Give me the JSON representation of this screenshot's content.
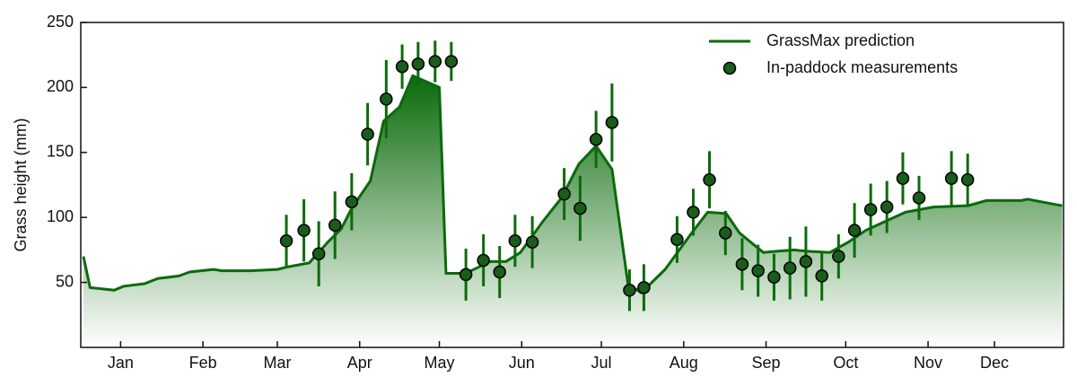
{
  "chart_data": {
    "type": "line",
    "ylabel": "Grass height (mm)",
    "xlim": [
      0,
      370
    ],
    "ylim": [
      0,
      250
    ],
    "xticks": [
      {
        "value": 15,
        "label": "Jan"
      },
      {
        "value": 46,
        "label": "Feb"
      },
      {
        "value": 74,
        "label": "Mar"
      },
      {
        "value": 105,
        "label": "Apr"
      },
      {
        "value": 135,
        "label": "May"
      },
      {
        "value": 166,
        "label": "Jun"
      },
      {
        "value": 196,
        "label": "Jul"
      },
      {
        "value": 227,
        "label": "Aug"
      },
      {
        "value": 258,
        "label": "Sep"
      },
      {
        "value": 288,
        "label": "Oct"
      },
      {
        "value": 319,
        "label": "Nov"
      },
      {
        "value": 344,
        "label": "Dec"
      }
    ],
    "yticks": [
      50,
      100,
      150,
      200,
      250
    ],
    "legend": "upper right",
    "series": [
      {
        "name": "GrassMax prediction",
        "type": "line",
        "color": "#0a6a0a",
        "x": [
          1,
          3.5,
          12.6,
          16,
          24,
          29,
          37,
          41,
          50,
          53,
          64,
          74,
          78,
          86,
          93,
          98,
          102,
          109,
          114,
          120,
          125,
          135,
          137.5,
          145,
          154,
          160,
          165.5,
          174,
          181,
          187.5,
          194,
          200,
          206,
          211,
          220,
          230,
          236,
          243,
          248,
          257,
          262,
          268.5,
          273.5,
          282,
          289,
          295.5,
          304,
          310.5,
          321,
          334,
          341,
          354,
          356.5,
          369.5
        ],
        "values": [
          70,
          46,
          44,
          47,
          49,
          53,
          55,
          58,
          60,
          59,
          59,
          60,
          62,
          65,
          81,
          91,
          107,
          128,
          174,
          185,
          209,
          200,
          57,
          57,
          66,
          66,
          73,
          97,
          115,
          141,
          155,
          137,
          49,
          42,
          60,
          88,
          104,
          103,
          88,
          73,
          74,
          75,
          74,
          73,
          81,
          90,
          98,
          104,
          108,
          109,
          113,
          113,
          114,
          109
        ]
      },
      {
        "name": "In-paddock measurements",
        "type": "scatter",
        "color": "#1a5c1a",
        "x": [
          77.4,
          84,
          89.6,
          95.7,
          102,
          108,
          115,
          121,
          127,
          133.4,
          139.5,
          145,
          151.6,
          157.7,
          163.5,
          170,
          182,
          188,
          194,
          200,
          206.6,
          212,
          224.5,
          230.6,
          236.7,
          242.7,
          249,
          255,
          261,
          267,
          273,
          279,
          285.3,
          291.3,
          297.4,
          303.5,
          309.5,
          315.6,
          327.8,
          333.9
        ],
        "values": [
          82,
          90,
          72,
          94,
          112,
          164,
          191,
          216,
          218,
          220,
          220,
          56,
          67,
          58,
          82,
          81,
          118,
          107,
          160,
          173,
          44,
          46,
          83,
          104,
          129,
          88,
          64,
          59,
          54,
          61,
          66,
          55,
          70,
          90,
          106,
          108,
          130,
          115,
          130,
          129
        ],
        "errors": [
          20,
          24,
          25,
          26,
          22,
          24,
          30,
          17,
          17,
          16,
          15,
          20,
          20,
          20,
          20,
          20,
          20,
          25,
          22,
          30,
          16,
          18,
          18,
          18,
          22,
          17,
          20,
          20,
          18,
          24,
          27,
          19,
          17,
          21,
          20,
          20,
          20,
          17,
          21,
          20
        ]
      }
    ]
  }
}
